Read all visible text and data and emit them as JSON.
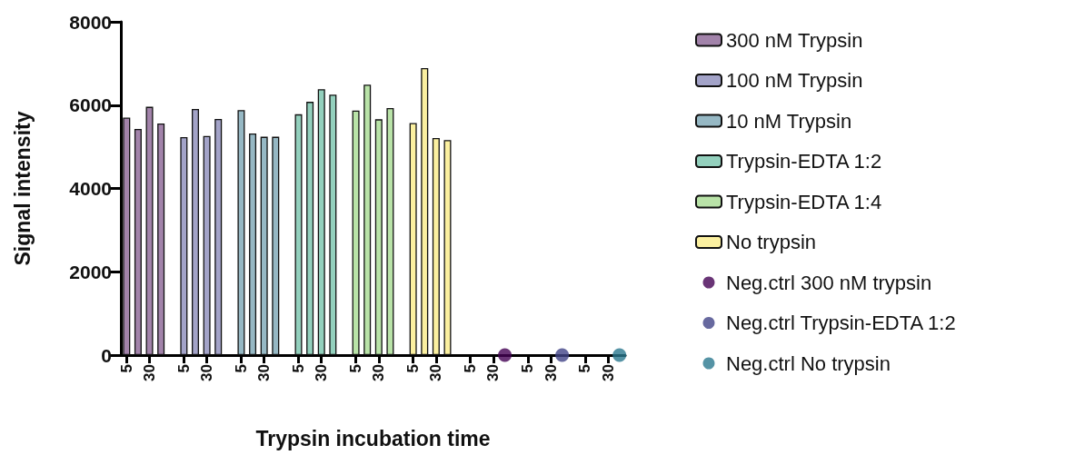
{
  "chart_data": {
    "type": "bar",
    "xlabel": "Trypsin incubation time",
    "ylabel": "Signal intensity",
    "categories": [
      "5",
      null,
      "30",
      null,
      null,
      "5",
      null,
      "30",
      null,
      null,
      "5",
      null,
      "30",
      null,
      null,
      "5",
      null,
      "30",
      null,
      null,
      "5",
      null,
      "30",
      null,
      null,
      "5",
      null,
      "30",
      null,
      null,
      "5",
      null,
      "30",
      null,
      null,
      "5",
      null,
      "30",
      null,
      null,
      "5",
      null,
      "30",
      null
    ],
    "ylim": [
      0,
      8000
    ],
    "yticks": [
      0,
      2000,
      4000,
      6000,
      8000
    ],
    "grid": false,
    "legend": "right",
    "marker": "circle",
    "series": [
      {
        "name": "300 nM Trypsin",
        "color": "#a283aa",
        "values": [
          5700,
          5430,
          5960,
          5560,
          null,
          null,
          null,
          null,
          null,
          null,
          null,
          null,
          null,
          null,
          null,
          null,
          null,
          null,
          null,
          null,
          null,
          null,
          null,
          null,
          null,
          null,
          null,
          null,
          null,
          null,
          null,
          null,
          null,
          null,
          null,
          null,
          null,
          null,
          null,
          null,
          null,
          null,
          null,
          null
        ]
      },
      {
        "name": "100 nM Trypsin",
        "color": "#a3a3c8",
        "values": [
          null,
          null,
          null,
          null,
          null,
          5230,
          5910,
          5260,
          5670,
          null,
          null,
          null,
          null,
          null,
          null,
          null,
          null,
          null,
          null,
          null,
          null,
          null,
          null,
          null,
          null,
          null,
          null,
          null,
          null,
          null,
          null,
          null,
          null,
          null,
          null,
          null,
          null,
          null,
          null,
          null,
          null,
          null,
          null,
          null
        ]
      },
      {
        "name": "10 nM Trypsin",
        "color": "#96b8c4",
        "values": [
          null,
          null,
          null,
          null,
          null,
          null,
          null,
          null,
          null,
          null,
          5880,
          5320,
          5240,
          5240,
          null,
          null,
          null,
          null,
          null,
          null,
          null,
          null,
          null,
          null,
          null,
          null,
          null,
          null,
          null,
          null,
          null,
          null,
          null,
          null,
          null,
          null,
          null,
          null,
          null,
          null,
          null,
          null,
          null,
          null
        ]
      },
      {
        "name": "Trypsin-EDTA 1:2",
        "color": "#93d0bd",
        "values": [
          null,
          null,
          null,
          null,
          null,
          null,
          null,
          null,
          null,
          null,
          null,
          null,
          null,
          null,
          null,
          5780,
          6080,
          6380,
          6250,
          null,
          null,
          null,
          null,
          null,
          null,
          null,
          null,
          null,
          null,
          null,
          null,
          null,
          null,
          null,
          null,
          null,
          null,
          null,
          null,
          null,
          null,
          null,
          null,
          null
        ]
      },
      {
        "name": "Trypsin-EDTA 1:4",
        "color": "#b9e3a8",
        "values": [
          null,
          null,
          null,
          null,
          null,
          null,
          null,
          null,
          null,
          null,
          null,
          null,
          null,
          null,
          null,
          null,
          null,
          null,
          null,
          null,
          5870,
          6490,
          5660,
          5930,
          null,
          null,
          null,
          null,
          null,
          null,
          null,
          null,
          null,
          null,
          null,
          null,
          null,
          null,
          null,
          null,
          null,
          null,
          null,
          null
        ]
      },
      {
        "name": "No trypsin",
        "color": "#fbf0a0",
        "values": [
          null,
          null,
          null,
          null,
          null,
          null,
          null,
          null,
          null,
          null,
          null,
          null,
          null,
          null,
          null,
          null,
          null,
          null,
          null,
          null,
          null,
          null,
          null,
          null,
          null,
          5570,
          6890,
          5210,
          5160,
          null,
          null,
          null,
          null,
          null,
          null,
          null,
          null,
          null,
          null,
          null,
          null,
          null,
          null,
          null
        ]
      },
      {
        "name": "Neg.ctrl 300 nM trypsin",
        "type": "scatter",
        "color": "#440154",
        "values": [
          null,
          null,
          null,
          null,
          null,
          null,
          null,
          null,
          null,
          null,
          null,
          null,
          null,
          null,
          null,
          null,
          null,
          null,
          null,
          null,
          null,
          null,
          null,
          null,
          null,
          null,
          null,
          null,
          null,
          null,
          null,
          null,
          null,
          0,
          null,
          null,
          null,
          null,
          null,
          null,
          null,
          null,
          null,
          null
        ]
      },
      {
        "name": "Neg.ctrl Trypsin-EDTA 1:2",
        "type": "scatter",
        "color": "#414487",
        "values": [
          null,
          null,
          null,
          null,
          null,
          null,
          null,
          null,
          null,
          null,
          null,
          null,
          null,
          null,
          null,
          null,
          null,
          null,
          null,
          null,
          null,
          null,
          null,
          null,
          null,
          null,
          null,
          null,
          null,
          null,
          null,
          null,
          null,
          null,
          null,
          null,
          null,
          null,
          0,
          null,
          null,
          null,
          null,
          null
        ]
      },
      {
        "name": "Neg.ctrl No trypsin",
        "type": "scatter",
        "color": "#2a788e",
        "values": [
          null,
          null,
          null,
          null,
          null,
          null,
          null,
          null,
          null,
          null,
          null,
          null,
          null,
          null,
          null,
          null,
          null,
          null,
          null,
          null,
          null,
          null,
          null,
          null,
          null,
          null,
          null,
          null,
          null,
          null,
          null,
          null,
          null,
          null,
          null,
          null,
          null,
          null,
          null,
          null,
          null,
          null,
          null,
          0
        ]
      }
    ]
  }
}
